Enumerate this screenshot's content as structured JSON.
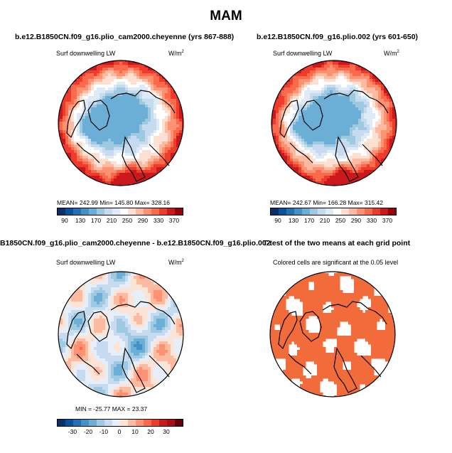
{
  "main_title": "MAM",
  "panels": {
    "p1": {
      "title": "b.e12.B1850CN.f09_g16.plio_cam2000.cheyenne (yrs 867-888)",
      "subtitle": "Surf downwelling LW",
      "units": "W/m",
      "units_exp": "2",
      "stats": "MEAN=  242.99    Min=  145.80    Max=  328.16"
    },
    "p2": {
      "title": "b.e12.B1850CN.f09_g16.plio.002 (yrs 601-650)",
      "subtitle": "Surf downwelling LW",
      "units": "W/m",
      "units_exp": "2",
      "stats": "MEAN=  242.67    Min=  166.28    Max=  315.42"
    },
    "p3": {
      "title": "B1850CN.f09_g16.plio_cam2000.cheyenne - b.e12.B1850CN.f09_g16.plio.002",
      "subtitle": "Surf downwelling LW",
      "units": "W/m",
      "units_exp": "2",
      "stats": "MIN = -25.77  MAX =  23.37"
    },
    "p4": {
      "title": "T-test of the two means at each grid point",
      "subtitle": "Colored cells are significant at the 0.05 level"
    }
  },
  "chart_data": [
    {
      "type": "heatmap",
      "title": "b.e12.B1850CN.f09_g16.plio_cam2000.cheyenne (yrs 867-888)",
      "variable": "Surf downwelling LW",
      "units": "W/m2",
      "mean": 242.99,
      "min": 145.8,
      "max": 328.16,
      "colorbar_ticks": [
        "90",
        "130",
        "170",
        "210",
        "250",
        "290",
        "330",
        "370"
      ],
      "projection": "north polar stereographic"
    },
    {
      "type": "heatmap",
      "title": "b.e12.B1850CN.f09_g16.plio.002 (yrs 601-650)",
      "variable": "Surf downwelling LW",
      "units": "W/m2",
      "mean": 242.67,
      "min": 166.28,
      "max": 315.42,
      "colorbar_ticks": [
        "90",
        "130",
        "170",
        "210",
        "250",
        "290",
        "330",
        "370"
      ],
      "projection": "north polar stereographic"
    },
    {
      "type": "heatmap",
      "title": "B1850CN.f09_g16.plio_cam2000.cheyenne - b.e12.B1850CN.f09_g16.plio.002",
      "variable": "Surf downwelling LW",
      "units": "W/m2",
      "min": -25.77,
      "max": 23.37,
      "colorbar_ticks": [
        "-30",
        "-20",
        "-10",
        "0",
        "10",
        "20",
        "30"
      ],
      "projection": "north polar stereographic"
    },
    {
      "type": "heatmap",
      "title": "T-test of the two means at each grid point",
      "note": "Colored cells are significant at the 0.05 level",
      "projection": "north polar stereographic"
    }
  ],
  "colors": {
    "abs_scale": [
      "#08306b",
      "#08519c",
      "#2171b5",
      "#4292c6",
      "#6baed6",
      "#9ecae1",
      "#c6dbef",
      "#deebf7",
      "#ffffff",
      "#fee0d2",
      "#fcbba1",
      "#fc9272",
      "#fb6a4a",
      "#ef3b2c",
      "#cb181d",
      "#99000d"
    ],
    "diff_scale": [
      "#08306b",
      "#08519c",
      "#2171b5",
      "#4292c6",
      "#6baed6",
      "#9ecae1",
      "#c6dbef",
      "#e6eff9",
      "#fbe3d6",
      "#fcbba1",
      "#fc9272",
      "#fb6a4a",
      "#ef3b2c",
      "#cb181d",
      "#a50f15",
      "#67000d"
    ],
    "ttest": "#f26b3a"
  }
}
